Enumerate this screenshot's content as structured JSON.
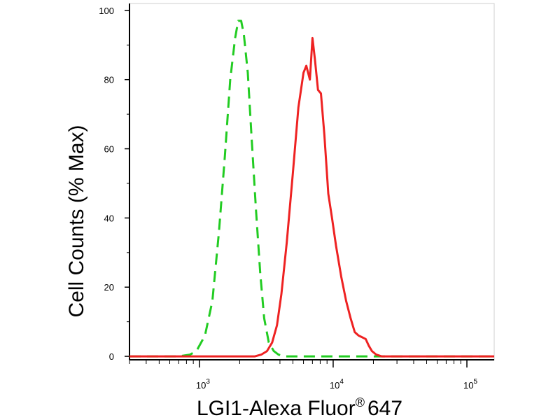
{
  "chart_data": {
    "type": "line",
    "title": "",
    "xlabel": "LGI1-Alexa Fluor",
    "xlabel_superscript": "®",
    "xlabel_suffix": "647",
    "ylabel": "Cell Counts (% Max)",
    "xscale": "log",
    "xlim": [
      300,
      160000
    ],
    "ylim": [
      -1,
      102
    ],
    "grid": false,
    "legend": "none",
    "y_ticks": [
      0,
      20,
      40,
      60,
      80,
      100
    ],
    "y_tick_labels": [
      "0",
      "20",
      "40",
      "60",
      "80",
      "100"
    ],
    "x_major_ticks": [
      1000,
      10000,
      100000
    ],
    "x_tick_base": "10",
    "x_tick_exponents": [
      "3",
      "4",
      "5"
    ],
    "series": [
      {
        "color": "#22cc22",
        "style": "dashed",
        "x": [
          300,
          700,
          850,
          950,
          1100,
          1250,
          1400,
          1550,
          1700,
          1850,
          1950,
          2050,
          2150,
          2300,
          2450,
          2650,
          2850,
          3050,
          3300,
          3600,
          3900,
          4300,
          4800,
          5500,
          7000,
          10000,
          30000,
          160000
        ],
        "y": [
          0,
          0,
          0.5,
          1.5,
          6,
          16,
          36,
          58,
          80,
          92,
          97,
          97,
          93,
          82,
          64,
          42,
          24,
          11,
          4,
          1.5,
          0.5,
          0,
          0,
          0,
          0,
          0,
          0,
          0
        ]
      },
      {
        "color": "#ee2222",
        "style": "solid",
        "x": [
          300,
          1000,
          2000,
          2600,
          2900,
          3200,
          3500,
          3800,
          4100,
          4500,
          5000,
          5500,
          6000,
          6300,
          6700,
          7000,
          7300,
          7700,
          8100,
          8600,
          9200,
          9800,
          10500,
          11500,
          12500,
          13500,
          14500,
          15500,
          16500,
          17500,
          18500,
          19500,
          21000,
          23000,
          26000,
          30000,
          40000,
          160000
        ],
        "y": [
          0,
          0,
          0,
          0,
          0.5,
          1.5,
          4,
          9,
          18,
          33,
          53,
          72,
          82,
          84,
          80,
          92,
          86,
          77,
          76,
          64,
          47,
          40,
          32,
          23,
          16,
          11,
          7,
          6,
          5.5,
          5,
          3,
          1.5,
          0.5,
          0,
          0,
          0,
          0,
          0
        ]
      }
    ]
  }
}
